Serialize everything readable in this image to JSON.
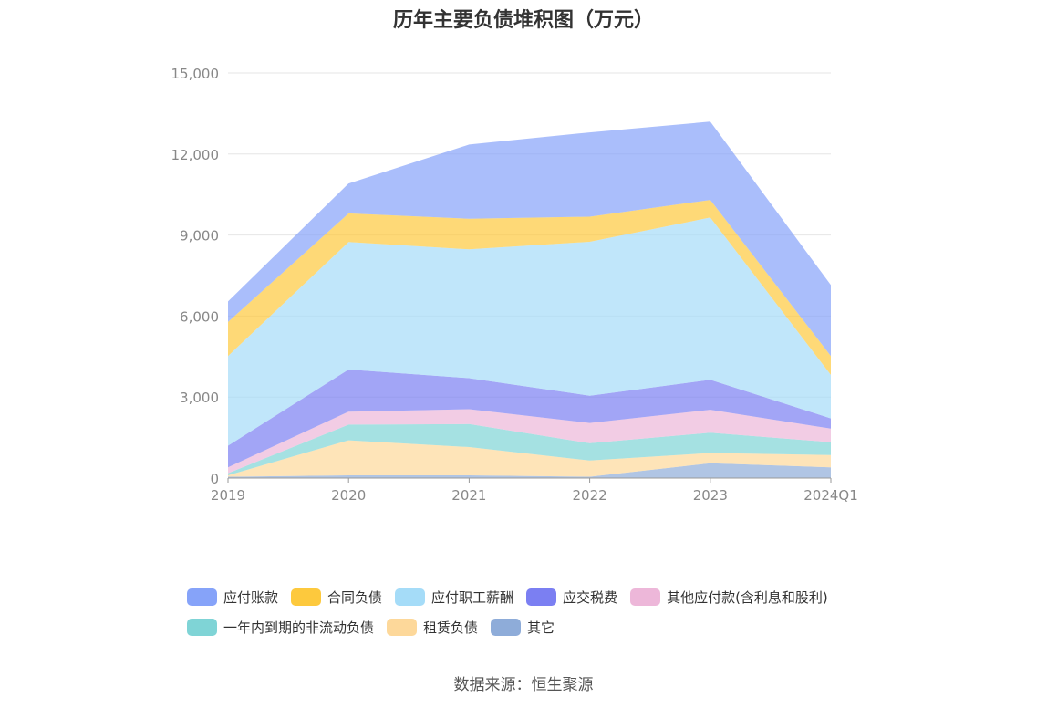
{
  "source_text": "数据来源：恒生聚源",
  "chart_data": {
    "type": "area",
    "stacked": true,
    "title": "历年主要负债堆积图（万元）",
    "categories": [
      "2019",
      "2020",
      "2021",
      "2022",
      "2023",
      "2024Q1"
    ],
    "ylim": [
      0,
      15000
    ],
    "yticks": [
      0,
      3000,
      6000,
      9000,
      12000,
      15000
    ],
    "ytick_labels": [
      "0",
      "3,000",
      "6,000",
      "9,000",
      "12,000",
      "15,000"
    ],
    "grid": true,
    "legend_position": "bottom",
    "series": [
      {
        "name": "其它",
        "color": "#8eacd9",
        "values": [
          50,
          100,
          100,
          50,
          550,
          400
        ]
      },
      {
        "name": "租赁负债",
        "color": "#fdd89a",
        "values": [
          50,
          1300,
          1050,
          600,
          380,
          450
        ]
      },
      {
        "name": "一年内到期的非流动负债",
        "color": "#7fd4d6",
        "values": [
          80,
          580,
          850,
          640,
          750,
          480
        ]
      },
      {
        "name": "其他应付款(含利息和股利)",
        "color": "#edb7d9",
        "values": [
          220,
          480,
          550,
          750,
          850,
          500
        ]
      },
      {
        "name": "应交税费",
        "color": "#7b7ff2",
        "values": [
          800,
          1560,
          1150,
          1010,
          1110,
          380
        ]
      },
      {
        "name": "应付职工薪酬",
        "color": "#a5dcf8",
        "values": [
          3320,
          4720,
          4770,
          5700,
          6010,
          1610
        ]
      },
      {
        "name": "合同负债",
        "color": "#fdc93d",
        "values": [
          1260,
          1060,
          1130,
          930,
          650,
          700
        ]
      },
      {
        "name": "应付账款",
        "color": "#86a3f9",
        "values": [
          760,
          1110,
          2750,
          3120,
          2900,
          2630
        ]
      }
    ],
    "legend_rows": [
      [
        "应付账款",
        "合同负债",
        "应付职工薪酬",
        "应交税费",
        "其他应付款(含利息和股利)"
      ],
      [
        "一年内到期的非流动负债",
        "租赁负债",
        "其它"
      ]
    ]
  }
}
